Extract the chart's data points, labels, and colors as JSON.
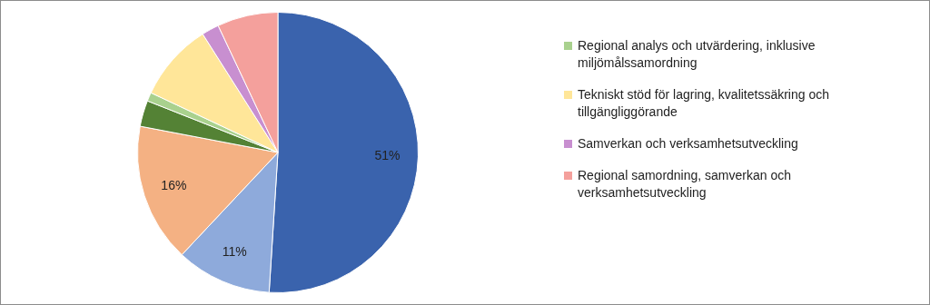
{
  "chart_data": {
    "type": "pie",
    "categories": [
      null,
      null,
      null,
      null,
      "Regional analys och utvärdering, inklusive miljömålssamordning",
      "Tekniskt stöd för lagring, kvalitetssäkring och tillgängliggörande",
      "Samverkan och verksamhetsutveckling",
      "Regional samordning, samverkan och verksamhetsutveckling"
    ],
    "values": [
      51,
      11,
      16,
      3,
      1,
      9,
      2,
      7
    ],
    "colors": [
      "#3a63ad",
      "#8eaadb",
      "#f4b183",
      "#548235",
      "#a9d18e",
      "#ffe699",
      "#c88fd0",
      "#f4a09c"
    ],
    "value_labels": [
      "51%",
      "11%",
      "16%",
      null,
      null,
      null,
      null,
      null
    ],
    "legend": "right"
  }
}
